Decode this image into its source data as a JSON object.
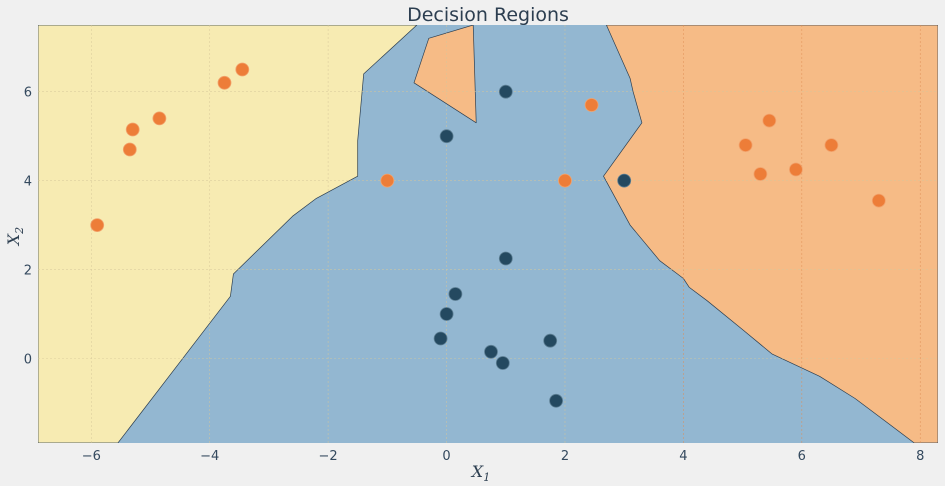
{
  "chart_data": {
    "type": "scatter",
    "title": "Decision Regions",
    "xlabel": "X",
    "xlabel_sub": "1",
    "ylabel": "X",
    "ylabel_sub": "2",
    "xlim": [
      -6.9,
      8.3
    ],
    "ylim": [
      -1.9,
      7.5
    ],
    "x_ticks": [
      -6,
      -4,
      -2,
      0,
      2,
      4,
      6,
      8
    ],
    "y_ticks": [
      0,
      2,
      4,
      6
    ],
    "grid": true,
    "colors": {
      "background": "#f0f0f0",
      "region_yellow": "#f7ebb2",
      "region_blue": "#93b7d1",
      "region_orange": "#f6bb86",
      "point_orange": "#ed7d38",
      "point_dark": "#244960",
      "grid_line": "#d6c79a",
      "grid_line_orange": "#e08d55",
      "text": "#2c3e50"
    },
    "regions": [
      {
        "class": "yellow",
        "polygon": [
          [
            -6.9,
            7.5
          ],
          [
            -0.5,
            7.5
          ],
          [
            -1.4,
            6.4
          ],
          [
            -1.5,
            4.9
          ],
          [
            -1.5,
            4.1
          ],
          [
            -2.2,
            3.6
          ],
          [
            -2.6,
            3.2
          ],
          [
            -3.6,
            1.9
          ],
          [
            -3.65,
            1.4
          ],
          [
            -5.55,
            -1.9
          ],
          [
            -6.9,
            -1.9
          ]
        ]
      },
      {
        "class": "orange",
        "polygon": [
          [
            -0.55,
            6.2
          ],
          [
            -0.3,
            7.2
          ],
          [
            0.45,
            7.5
          ],
          [
            0.5,
            5.3
          ]
        ]
      },
      {
        "class": "orange",
        "polygon": [
          [
            2.7,
            7.5
          ],
          [
            8.3,
            7.5
          ],
          [
            8.3,
            -1.9
          ],
          [
            7.9,
            -1.9
          ],
          [
            6.9,
            -0.9
          ],
          [
            6.3,
            -0.4
          ],
          [
            5.5,
            0.1
          ],
          [
            5.0,
            0.65
          ],
          [
            4.4,
            1.3
          ],
          [
            4.1,
            1.6
          ],
          [
            4.0,
            1.8
          ],
          [
            3.9,
            1.9
          ],
          [
            3.6,
            2.2
          ],
          [
            3.1,
            3.0
          ],
          [
            2.65,
            4.1
          ],
          [
            3.3,
            5.3
          ],
          [
            3.15,
            6.0
          ],
          [
            3.1,
            6.3
          ]
        ]
      }
    ],
    "points": [
      {
        "x": -5.9,
        "y": 3.0,
        "class": "orange"
      },
      {
        "x": -5.35,
        "y": 4.7,
        "class": "orange"
      },
      {
        "x": -5.3,
        "y": 5.15,
        "class": "orange"
      },
      {
        "x": -4.85,
        "y": 5.4,
        "class": "orange"
      },
      {
        "x": -3.75,
        "y": 6.2,
        "class": "orange"
      },
      {
        "x": -3.45,
        "y": 6.5,
        "class": "orange"
      },
      {
        "x": -1.0,
        "y": 4.0,
        "class": "orange"
      },
      {
        "x": 2.0,
        "y": 4.0,
        "class": "orange"
      },
      {
        "x": 2.45,
        "y": 5.7,
        "class": "orange"
      },
      {
        "x": 5.05,
        "y": 4.8,
        "class": "orange"
      },
      {
        "x": 5.3,
        "y": 4.15,
        "class": "orange"
      },
      {
        "x": 5.45,
        "y": 5.35,
        "class": "orange"
      },
      {
        "x": 5.9,
        "y": 4.25,
        "class": "orange"
      },
      {
        "x": 6.5,
        "y": 4.8,
        "class": "orange"
      },
      {
        "x": 7.3,
        "y": 3.55,
        "class": "orange"
      },
      {
        "x": 0.0,
        "y": 5.0,
        "class": "dark"
      },
      {
        "x": 1.0,
        "y": 6.0,
        "class": "dark"
      },
      {
        "x": 3.0,
        "y": 4.0,
        "class": "dark"
      },
      {
        "x": 1.0,
        "y": 2.25,
        "class": "dark"
      },
      {
        "x": 0.15,
        "y": 1.45,
        "class": "dark"
      },
      {
        "x": 0.0,
        "y": 1.0,
        "class": "dark"
      },
      {
        "x": -0.1,
        "y": 0.45,
        "class": "dark"
      },
      {
        "x": 0.75,
        "y": 0.15,
        "class": "dark"
      },
      {
        "x": 0.95,
        "y": -0.1,
        "class": "dark"
      },
      {
        "x": 1.75,
        "y": 0.4,
        "class": "dark"
      },
      {
        "x": 1.85,
        "y": -0.95,
        "class": "dark"
      }
    ]
  }
}
